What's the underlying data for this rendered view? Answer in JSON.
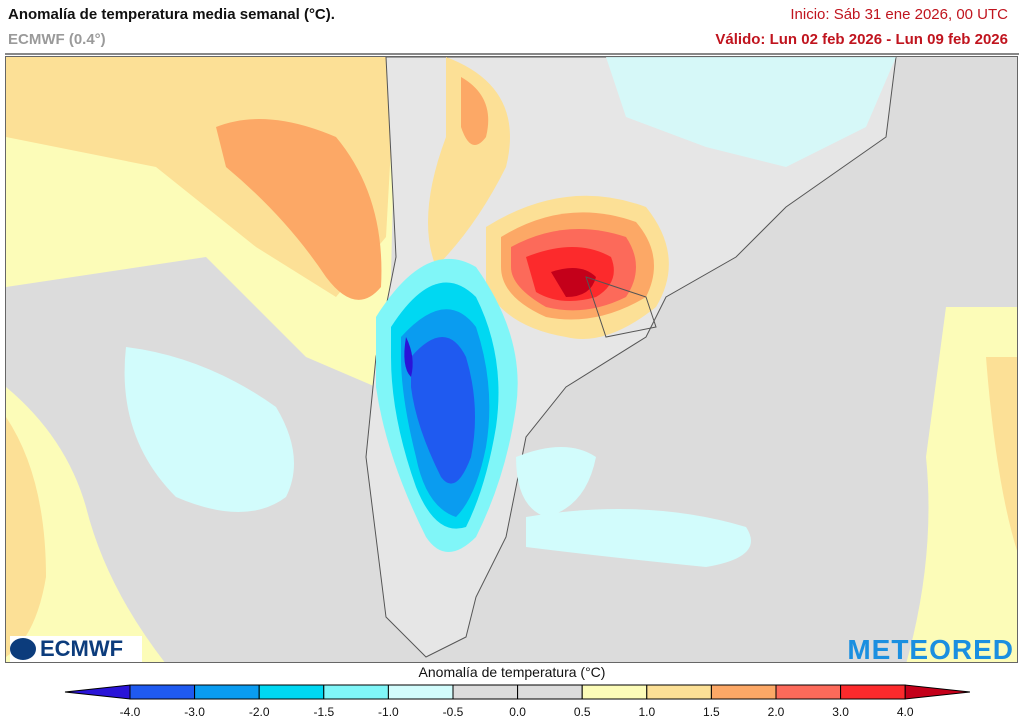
{
  "header": {
    "title": "Anomalía de temperatura media semanal (°C).",
    "model": "ECMWF (0.4°)",
    "init": "Inicio: Sáb 31 ene 2026, 00 UTC",
    "valid": "Válido: Lun 02 feb 2026 - Lun 09 feb 2026"
  },
  "logos": {
    "left": "ECMWF",
    "right": "METEORED"
  },
  "colorbar": {
    "title": "Anomalía de temperatura (°C)",
    "ticks": [
      "-4.0",
      "-3.0",
      "-2.0",
      "-1.5",
      "-1.0",
      "-0.5",
      "0.0",
      "0.5",
      "1.0",
      "1.5",
      "2.0",
      "3.0",
      "4.0"
    ],
    "under_color": "#2a14d8",
    "colors": [
      "#1f5af0",
      "#0a9cf0",
      "#00d8f2",
      "#80f6f8",
      "#d2fcfc",
      "#dcdcdc",
      "#dcdcdc",
      "#fcfcb8",
      "#fce096",
      "#fca866",
      "#fc6a5a",
      "#fc2a2c"
    ],
    "over_color": "#c4001a"
  }
}
